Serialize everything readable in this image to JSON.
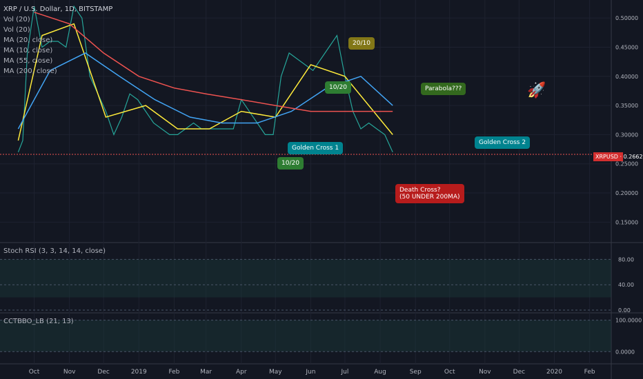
{
  "chart_data": {
    "type": "line",
    "legend": {
      "title": "XRP / U.S. Dollar, 1D, BITSTAMP",
      "studies": [
        "Vol (20)",
        "Vol (20)",
        "MA (20, close)",
        "MA (10, close)",
        "MA (55, close)",
        "MA (200, close)"
      ]
    },
    "x_ticks": [
      "Oct",
      "Nov",
      "Dec",
      "2019",
      "Feb",
      "Mar",
      "Apr",
      "May",
      "Jun",
      "Jul",
      "Aug",
      "Sep",
      "Oct",
      "Nov",
      "Dec",
      "2020",
      "Feb"
    ],
    "price_axis": {
      "ticks": [
        "0.50000",
        "0.45000",
        "0.40000",
        "0.35000",
        "0.30000",
        "0.25000",
        "0.20000",
        "0.15000"
      ],
      "ylim": [
        0.115,
        0.525
      ]
    },
    "symbol_label": "XRPUSD",
    "last_price": "0.26626",
    "series": [
      {
        "name": "XRPUSD",
        "color": "#26a69a",
        "x": [
          "2018-09-17",
          "2018-09-21",
          "2018-09-25",
          "2018-10-01",
          "2018-10-08",
          "2018-10-15",
          "2018-10-22",
          "2018-10-29",
          "2018-11-05",
          "2018-11-12",
          "2018-11-19",
          "2018-11-26",
          "2018-12-03",
          "2018-12-10",
          "2018-12-17",
          "2018-12-24",
          "2018-12-31",
          "2019-01-07",
          "2019-01-14",
          "2019-01-21",
          "2019-01-28",
          "2019-02-04",
          "2019-02-11",
          "2019-02-18",
          "2019-02-25",
          "2019-03-04",
          "2019-03-11",
          "2019-03-18",
          "2019-03-25",
          "2019-04-01",
          "2019-04-08",
          "2019-04-15",
          "2019-04-22",
          "2019-04-29",
          "2019-05-06",
          "2019-05-13",
          "2019-05-20",
          "2019-05-27",
          "2019-06-03",
          "2019-06-10",
          "2019-06-17",
          "2019-06-24",
          "2019-07-01",
          "2019-07-08",
          "2019-07-15",
          "2019-07-22",
          "2019-07-29",
          "2019-08-05",
          "2019-08-12"
        ],
        "values": [
          0.27,
          0.29,
          0.44,
          0.52,
          0.45,
          0.46,
          0.46,
          0.45,
          0.52,
          0.5,
          0.4,
          0.37,
          0.34,
          0.3,
          0.33,
          0.37,
          0.36,
          0.34,
          0.32,
          0.31,
          0.3,
          0.3,
          0.31,
          0.32,
          0.31,
          0.31,
          0.31,
          0.31,
          0.31,
          0.36,
          0.34,
          0.32,
          0.3,
          0.3,
          0.4,
          0.44,
          0.43,
          0.42,
          0.41,
          0.43,
          0.45,
          0.47,
          0.4,
          0.34,
          0.31,
          0.32,
          0.31,
          0.3,
          0.27
        ]
      },
      {
        "name": "MA (10, close)",
        "color": "#ffeb3b",
        "x": [
          "2018-09-17",
          "2018-10-08",
          "2018-11-05",
          "2018-12-03",
          "2019-01-07",
          "2019-02-04",
          "2019-03-04",
          "2019-04-01",
          "2019-05-01",
          "2019-06-01",
          "2019-07-01",
          "2019-08-12"
        ],
        "values": [
          0.29,
          0.47,
          0.49,
          0.33,
          0.35,
          0.31,
          0.31,
          0.34,
          0.33,
          0.42,
          0.4,
          0.3
        ]
      },
      {
        "name": "MA (55, close)",
        "color": "#42a5f5",
        "x": [
          "2018-09-17",
          "2018-10-15",
          "2018-11-15",
          "2018-12-15",
          "2019-01-15",
          "2019-02-15",
          "2019-03-15",
          "2019-04-15",
          "2019-05-15",
          "2019-06-15",
          "2019-07-15",
          "2019-08-12"
        ],
        "values": [
          0.31,
          0.41,
          0.44,
          0.4,
          0.36,
          0.33,
          0.32,
          0.32,
          0.34,
          0.38,
          0.4,
          0.35
        ]
      },
      {
        "name": "MA (200, close)",
        "color": "#ef5350",
        "x": [
          "2018-10-01",
          "2018-11-01",
          "2018-12-01",
          "2019-01-01",
          "2019-02-01",
          "2019-03-01",
          "2019-04-01",
          "2019-05-01",
          "2019-06-01",
          "2019-07-01",
          "2019-08-12"
        ],
        "values": [
          0.51,
          0.49,
          0.44,
          0.4,
          0.38,
          0.37,
          0.36,
          0.35,
          0.34,
          0.34,
          0.34
        ]
      }
    ],
    "annotations": [
      {
        "text": "20/10",
        "color": "#827717"
      },
      {
        "text": "10/20",
        "color": "#2e7d32"
      },
      {
        "text": "10/20",
        "color": "#2e7d32"
      },
      {
        "text": "Golden Cross 1",
        "color": "#00838f"
      },
      {
        "text": "Parabola???",
        "color": "#33691e"
      },
      {
        "text": "Golden Cross 2",
        "color": "#00838f"
      },
      {
        "text": "Death Cross?\n(50 UNDER 200MA)",
        "color": "#b71c1c"
      }
    ],
    "stoch": {
      "legend": "Stoch RSI (3, 3, 14, 14, close)",
      "ticks": [
        "80.00",
        "40.00",
        "0.00"
      ],
      "ylim": [
        0,
        100
      ]
    },
    "cct": {
      "legend": "CCTBBO_LB (21, 13)",
      "ticks": [
        "100.0000",
        "0.0000"
      ],
      "ylim": [
        -30,
        110
      ]
    }
  }
}
